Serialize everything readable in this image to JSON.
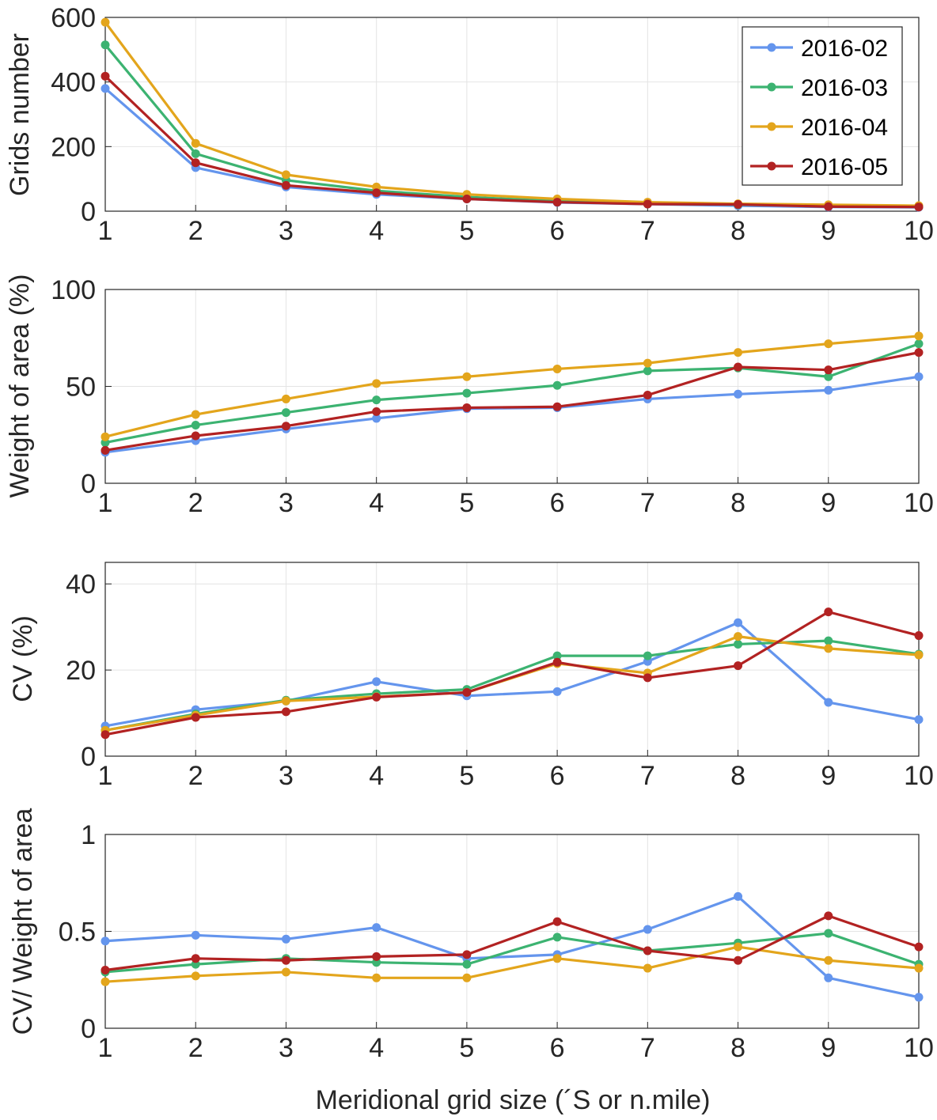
{
  "chart_data": [
    {
      "type": "line",
      "x": [
        1,
        2,
        3,
        4,
        5,
        6,
        7,
        8,
        9,
        10
      ],
      "title": "",
      "xlabel": "",
      "ylabel": "Grids number",
      "xlim": [
        1,
        10
      ],
      "ylim": [
        0,
        600
      ],
      "yticks": [
        0,
        200,
        400,
        600
      ],
      "ytick_labels": [
        "0",
        "200",
        "400",
        "600"
      ],
      "xtick_labels": [
        "1",
        "2",
        "3",
        "4",
        "5",
        "6",
        "7",
        "8",
        "9",
        "10"
      ],
      "grid": true,
      "legend_position": "top-right",
      "series": [
        {
          "name": "2016-02",
          "values": [
            380,
            135,
            75,
            52,
            38,
            27,
            22,
            17,
            13,
            12
          ]
        },
        {
          "name": "2016-03",
          "values": [
            515,
            178,
            96,
            63,
            44,
            31,
            24,
            20,
            17,
            15
          ]
        },
        {
          "name": "2016-04",
          "values": [
            585,
            210,
            113,
            75,
            52,
            38,
            28,
            23,
            20,
            17
          ]
        },
        {
          "name": "2016-05",
          "values": [
            418,
            150,
            80,
            57,
            38,
            28,
            22,
            21,
            14,
            13
          ]
        }
      ]
    },
    {
      "type": "line",
      "x": [
        1,
        2,
        3,
        4,
        5,
        6,
        7,
        8,
        9,
        10
      ],
      "title": "",
      "xlabel": "",
      "ylabel": "Weight of area (%)",
      "xlim": [
        1,
        10
      ],
      "ylim": [
        0,
        100
      ],
      "yticks": [
        0,
        50,
        100
      ],
      "ytick_labels": [
        "0",
        "50",
        "100"
      ],
      "xtick_labels": [
        "1",
        "2",
        "3",
        "4",
        "5",
        "6",
        "7",
        "8",
        "9",
        "10"
      ],
      "grid": true,
      "series": [
        {
          "name": "2016-02",
          "values": [
            16,
            22,
            28,
            33.5,
            38.5,
            39,
            43.5,
            46,
            48,
            55
          ]
        },
        {
          "name": "2016-03",
          "values": [
            21,
            30,
            36.5,
            43,
            46.5,
            50.5,
            58,
            59.5,
            55,
            72
          ]
        },
        {
          "name": "2016-04",
          "values": [
            24,
            35.5,
            43.5,
            51.5,
            55,
            59,
            62,
            67.5,
            72,
            76
          ]
        },
        {
          "name": "2016-05",
          "values": [
            17,
            24.5,
            29.5,
            37,
            39,
            39.5,
            45.5,
            60,
            58.5,
            67.5
          ]
        }
      ]
    },
    {
      "type": "line",
      "x": [
        1,
        2,
        3,
        4,
        5,
        6,
        7,
        8,
        9,
        10
      ],
      "title": "",
      "xlabel": "",
      "ylabel": "CV (%)",
      "xlim": [
        1,
        10
      ],
      "ylim": [
        0,
        45
      ],
      "yticks": [
        0,
        20,
        40
      ],
      "ytick_labels": [
        "0",
        "20",
        "40"
      ],
      "xtick_labels": [
        "1",
        "2",
        "3",
        "4",
        "5",
        "6",
        "7",
        "8",
        "9",
        "10"
      ],
      "grid": true,
      "series": [
        {
          "name": "2016-02",
          "values": [
            7,
            10.8,
            12.8,
            17.3,
            14,
            15,
            22,
            31,
            12.5,
            8.5
          ]
        },
        {
          "name": "2016-03",
          "values": [
            6,
            9.8,
            13,
            14.5,
            15.5,
            23.3,
            23.3,
            26,
            26.8,
            23.7
          ]
        },
        {
          "name": "2016-04",
          "values": [
            6,
            9.5,
            12.8,
            13.8,
            14.8,
            21.5,
            19.3,
            27.8,
            25,
            23.5
          ]
        },
        {
          "name": "2016-05",
          "values": [
            5,
            9,
            10.3,
            13.7,
            14.8,
            21.8,
            18.2,
            21,
            33.5,
            28
          ]
        }
      ]
    },
    {
      "type": "line",
      "x": [
        1,
        2,
        3,
        4,
        5,
        6,
        7,
        8,
        9,
        10
      ],
      "title": "",
      "xlabel": "Meridional grid size (´S  or n.mile)",
      "ylabel": "CV/ Weight of area",
      "xlim": [
        1,
        10
      ],
      "ylim": [
        0,
        1
      ],
      "yticks": [
        0,
        0.5,
        1
      ],
      "ytick_labels": [
        "0",
        "0.5",
        "1"
      ],
      "xtick_labels": [
        "1",
        "2",
        "3",
        "4",
        "5",
        "6",
        "7",
        "8",
        "9",
        "10"
      ],
      "grid": true,
      "series": [
        {
          "name": "2016-02",
          "values": [
            0.45,
            0.48,
            0.46,
            0.52,
            0.36,
            0.38,
            0.51,
            0.68,
            0.26,
            0.16
          ]
        },
        {
          "name": "2016-03",
          "values": [
            0.29,
            0.33,
            0.36,
            0.34,
            0.33,
            0.47,
            0.4,
            0.44,
            0.49,
            0.33
          ]
        },
        {
          "name": "2016-04",
          "values": [
            0.24,
            0.27,
            0.29,
            0.26,
            0.26,
            0.36,
            0.31,
            0.42,
            0.35,
            0.31
          ]
        },
        {
          "name": "2016-05",
          "values": [
            0.3,
            0.36,
            0.35,
            0.37,
            0.38,
            0.55,
            0.4,
            0.35,
            0.58,
            0.42
          ]
        }
      ]
    }
  ],
  "legend": {
    "entries": [
      "2016-02",
      "2016-03",
      "2016-04",
      "2016-05"
    ]
  },
  "colors": {
    "2016-02": "#6495ED",
    "2016-03": "#3CB371",
    "2016-04": "#E3A51C",
    "2016-05": "#B22222"
  }
}
